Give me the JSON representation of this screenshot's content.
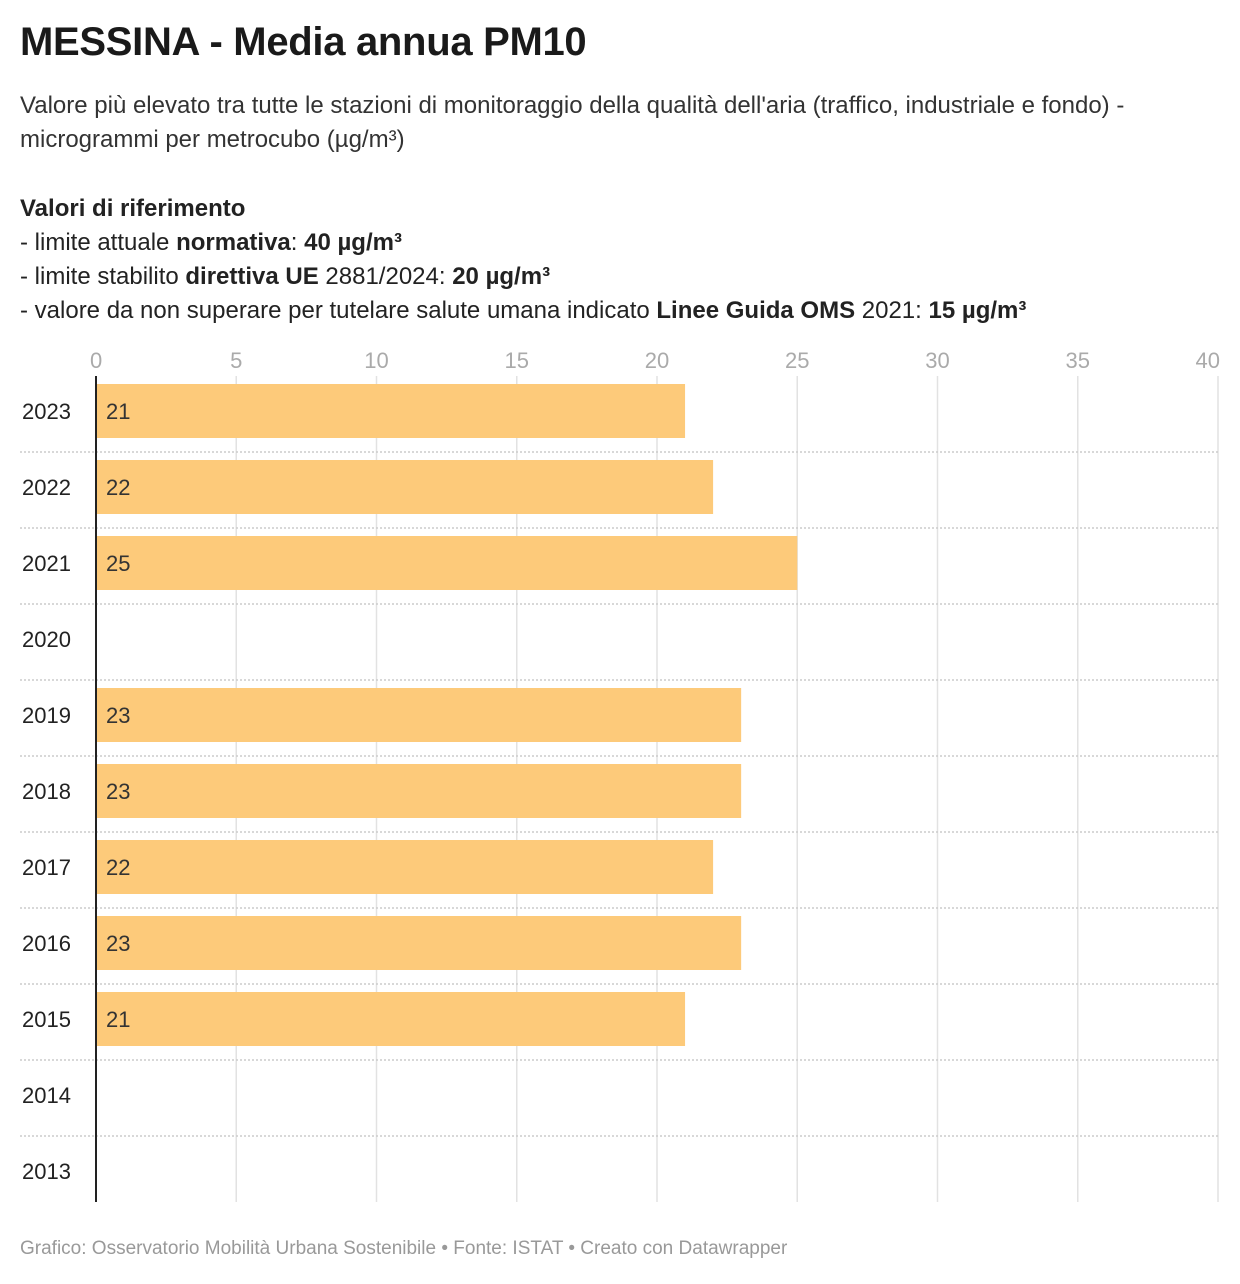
{
  "title": "MESSINA - Media annua PM10",
  "subtitle": "Valore più elevato tra tutte le stazioni di monitoraggio della qualità dell'aria (traffico, industriale e fondo) - microgrammi per metrocubo (µg/m³)",
  "notes": {
    "heading": "Valori di riferimento",
    "lines": [
      [
        {
          "text": "- limite attuale ",
          "bold": false
        },
        {
          "text": "normativa",
          "bold": true
        },
        {
          "text": ": ",
          "bold": false
        },
        {
          "text": "40 µg/m³",
          "bold": true
        }
      ],
      [
        {
          "text": "- limite stabilito ",
          "bold": false
        },
        {
          "text": "direttiva UE",
          "bold": true
        },
        {
          "text": " 2881/2024: ",
          "bold": false
        },
        {
          "text": "20 µg/m³",
          "bold": true
        }
      ],
      [
        {
          "text": "- valore da non superare per tutelare salute umana indicato ",
          "bold": false
        },
        {
          "text": "Linee Guida OMS",
          "bold": true
        },
        {
          "text": " 2021: ",
          "bold": false
        },
        {
          "text": "15 µg/m³",
          "bold": true
        }
      ]
    ]
  },
  "chart_data": {
    "type": "bar",
    "orientation": "horizontal",
    "categories": [
      "2023",
      "2022",
      "2021",
      "2020",
      "2019",
      "2018",
      "2017",
      "2016",
      "2015",
      "2014",
      "2013"
    ],
    "values": [
      21,
      22,
      25,
      null,
      23,
      23,
      22,
      23,
      21,
      null,
      null
    ],
    "value_labels": [
      "21",
      "22",
      "25",
      "",
      "23",
      "23",
      "22",
      "23",
      "21",
      "",
      ""
    ],
    "xlim": [
      0,
      40
    ],
    "xticks": [
      "0",
      "5",
      "10",
      "15",
      "20",
      "25",
      "30",
      "35",
      "40"
    ],
    "xtick_values": [
      0,
      5,
      10,
      15,
      20,
      25,
      30,
      35,
      40
    ],
    "axis_position": "top",
    "grid": true,
    "bar_color": "#fdca7a",
    "grid_color": "#e2e2e2",
    "row_separator_color": "#cccccc",
    "tick_label_color": "#aaaaaa"
  },
  "footer": "Grafico: Osservatorio Mobilità Urbana Sostenibile • Fonte: ISTAT • Creato con Datawrapper"
}
